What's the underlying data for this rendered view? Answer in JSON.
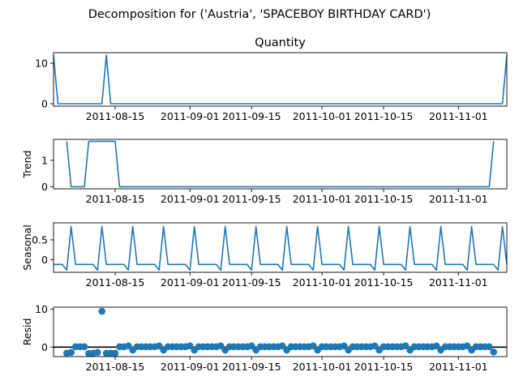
{
  "figure": {
    "suptitle": "Decomposition for ('Austria', 'SPACEBOY BIRTHDAY CARD')"
  },
  "colors": {
    "series": "#1f77b4",
    "axes": "#000000",
    "zero_line": "#000000"
  },
  "chart_data": [
    {
      "type": "line",
      "title": "Quantity",
      "ylabel": "",
      "xlim": [
        "2011-08-01",
        "2011-11-12"
      ],
      "ylim": [
        -0.6,
        12.6
      ],
      "yticks": [
        0,
        10
      ],
      "xticks": [
        "2011-08-15",
        "2011-09-01",
        "2011-09-15",
        "2011-10-01",
        "2011-10-15",
        "2011-11-01"
      ],
      "series": [
        {
          "x": [
            "2011-08-01",
            "2011-08-02",
            "2011-08-12",
            "2011-08-13",
            "2011-08-14",
            "2011-11-11",
            "2011-11-12"
          ],
          "y": [
            12,
            0,
            0,
            12,
            0,
            0,
            12
          ]
        }
      ]
    },
    {
      "type": "line",
      "title": "",
      "ylabel": "Trend",
      "xlim": [
        "2011-08-01",
        "2011-11-12"
      ],
      "ylim": [
        -0.08,
        1.79
      ],
      "yticks": [
        0,
        1
      ],
      "xticks": [
        "2011-08-15",
        "2011-09-01",
        "2011-09-15",
        "2011-10-01",
        "2011-10-15",
        "2011-11-01"
      ],
      "series": [
        {
          "x": [
            "2011-08-04",
            "2011-08-05",
            "2011-08-08",
            "2011-08-09",
            "2011-08-15",
            "2011-08-16",
            "2011-11-08",
            "2011-11-09"
          ],
          "y": [
            1.714,
            0,
            0,
            1.714,
            1.714,
            0,
            0,
            1.714
          ]
        }
      ]
    },
    {
      "type": "line",
      "title": "",
      "ylabel": "Seasonal",
      "xlim": [
        "2011-08-01",
        "2011-11-12"
      ],
      "ylim": [
        -0.32,
        0.93
      ],
      "yticks": [
        0.0,
        0.5
      ],
      "xticks": [
        "2011-08-15",
        "2011-09-01",
        "2011-09-15",
        "2011-10-01",
        "2011-10-15",
        "2011-11-01"
      ],
      "weekly_pattern": [
        -0.122,
        -0.122,
        -0.122,
        -0.265,
        0.837,
        -0.122,
        -0.122
      ],
      "series": [
        {
          "x_start": "2011-08-01",
          "days": 104
        }
      ]
    },
    {
      "type": "scatter",
      "title": "",
      "ylabel": "Resid",
      "xlim": [
        "2011-08-01",
        "2011-11-12"
      ],
      "ylim": [
        -2.5,
        10.5
      ],
      "yticks": [
        0,
        10
      ],
      "xticks": [
        "2011-08-15",
        "2011-09-01",
        "2011-09-15",
        "2011-10-01",
        "2011-10-15",
        "2011-11-01"
      ],
      "zero_line": true,
      "series": [
        {
          "x": [
            "2011-08-04",
            "2011-08-05",
            "2011-08-06",
            "2011-08-07",
            "2011-08-08",
            "2011-08-09",
            "2011-08-10",
            "2011-08-11",
            "2011-08-12",
            "2011-08-13",
            "2011-08-14",
            "2011-08-15",
            "2011-08-16",
            "2011-08-17",
            "2011-08-18",
            "2011-08-19",
            "2011-08-20",
            "2011-08-21",
            "2011-08-22",
            "2011-08-23",
            "2011-08-24",
            "2011-08-25",
            "2011-08-26",
            "2011-08-27",
            "2011-08-28",
            "2011-08-29",
            "2011-08-30",
            "2011-08-31",
            "2011-09-01",
            "2011-09-02",
            "2011-09-03",
            "2011-09-04",
            "2011-09-05",
            "2011-09-06",
            "2011-09-07",
            "2011-09-08",
            "2011-09-09",
            "2011-09-10",
            "2011-09-11",
            "2011-09-12",
            "2011-09-13",
            "2011-09-14",
            "2011-09-15",
            "2011-09-16",
            "2011-09-17",
            "2011-09-18",
            "2011-09-19",
            "2011-09-20",
            "2011-09-21",
            "2011-09-22",
            "2011-09-23",
            "2011-09-24",
            "2011-09-25",
            "2011-09-26",
            "2011-09-27",
            "2011-09-28",
            "2011-09-29",
            "2011-09-30",
            "2011-10-01",
            "2011-10-02",
            "2011-10-03",
            "2011-10-04",
            "2011-10-05",
            "2011-10-06",
            "2011-10-07",
            "2011-10-08",
            "2011-10-09",
            "2011-10-10",
            "2011-10-11",
            "2011-10-12",
            "2011-10-13",
            "2011-10-14",
            "2011-10-15",
            "2011-10-16",
            "2011-10-17",
            "2011-10-18",
            "2011-10-19",
            "2011-10-20",
            "2011-10-21",
            "2011-10-22",
            "2011-10-23",
            "2011-10-24",
            "2011-10-25",
            "2011-10-26",
            "2011-10-27",
            "2011-10-28",
            "2011-10-29",
            "2011-10-30",
            "2011-10-31",
            "2011-11-01",
            "2011-11-02",
            "2011-11-03",
            "2011-11-04",
            "2011-11-05",
            "2011-11-06",
            "2011-11-07",
            "2011-11-08",
            "2011-11-09"
          ],
          "y": [
            -1.6,
            -1.4,
            0.1,
            0.1,
            0.1,
            -1.7,
            -1.6,
            -1.4,
            9.4,
            -1.6,
            -1.6,
            -1.6,
            0.1,
            0.1,
            0.3,
            -0.8,
            0.1,
            0.1,
            0.1,
            0.1,
            0.1,
            0.3,
            -0.8,
            0.1,
            0.1,
            0.1,
            0.1,
            0.1,
            0.3,
            -0.8,
            0.1,
            0.1,
            0.1,
            0.1,
            0.1,
            0.3,
            -0.8,
            0.1,
            0.1,
            0.1,
            0.1,
            0.1,
            0.3,
            -0.8,
            0.1,
            0.1,
            0.1,
            0.1,
            0.1,
            0.3,
            -0.8,
            0.1,
            0.1,
            0.1,
            0.1,
            0.1,
            0.3,
            -0.8,
            0.1,
            0.1,
            0.1,
            0.1,
            0.1,
            0.3,
            -0.8,
            0.1,
            0.1,
            0.1,
            0.1,
            0.1,
            0.3,
            -0.8,
            0.1,
            0.1,
            0.1,
            0.1,
            0.1,
            0.3,
            -0.8,
            0.1,
            0.1,
            0.1,
            0.1,
            0.1,
            0.3,
            -0.8,
            0.1,
            0.1,
            0.1,
            0.1,
            0.1,
            0.3,
            -0.8,
            0.1,
            0.1,
            0.1,
            0.1,
            -1.3
          ]
        }
      ]
    }
  ]
}
